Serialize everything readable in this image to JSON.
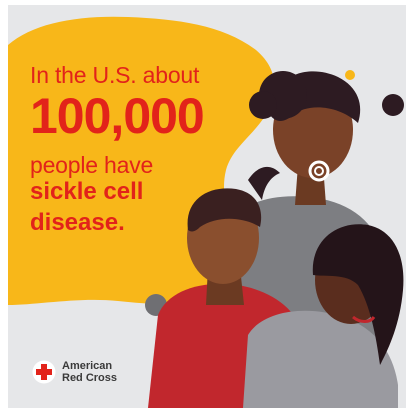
{
  "headline": {
    "line1": "In the U.S. about",
    "line2": "100,000",
    "line3": "people have",
    "line4": "sickle cell",
    "line5": "disease."
  },
  "logo": {
    "line1": "American",
    "line2": "Red Cross",
    "icon": "red-cross-icon"
  },
  "colors": {
    "background": "#e6e7e9",
    "accent_yellow": "#f8b719",
    "text_red": "#e2231a",
    "shirt_red": "#c1272d",
    "shirt_gray": "#8e8e93",
    "dark_dots": "#2d1b22"
  }
}
